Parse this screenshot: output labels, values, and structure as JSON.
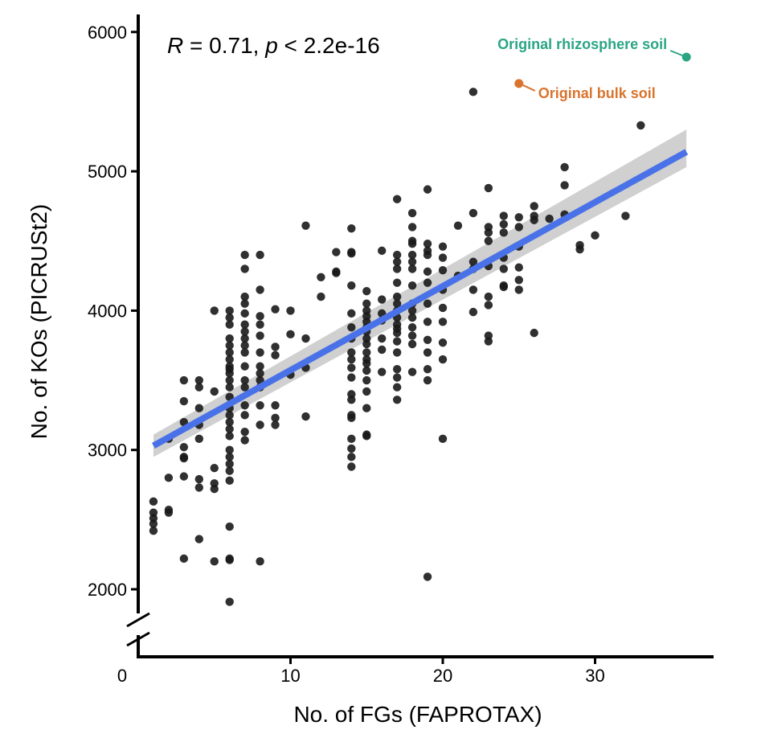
{
  "chart_data": {
    "type": "scatter",
    "title": "",
    "xlabel": "No. of FGs (FAPROTAX)",
    "ylabel": "No. of KOs (PICRUSt2)",
    "stats_text": {
      "r_label": "R",
      "r_rest": " = 0.71, ",
      "p_label": "p",
      "p_rest": " < 2.2e-16"
    },
    "xlim": [
      0,
      38
    ],
    "ylim": [
      1800,
      6100
    ],
    "x_ticks": [
      0,
      10,
      20,
      30
    ],
    "y_ticks": [
      2000,
      3000,
      4000,
      5000,
      6000
    ],
    "x_tick_labels": [
      "0",
      "10",
      "20",
      "30"
    ],
    "y_tick_labels": [
      "2000",
      "3000",
      "4000",
      "5000",
      "6000"
    ],
    "y_axis_break": true,
    "grid": false,
    "colors": {
      "points": "#1a1a1a",
      "fit_line": "#4a72e8",
      "confidence_band": "#c8c8c8",
      "rhizosphere": "#2aa583",
      "bulk": "#d9742d"
    },
    "fit": {
      "x": [
        1,
        36
      ],
      "y": [
        3030,
        5140
      ],
      "ci_low": [
        2950,
        5030
      ],
      "ci_high": [
        3110,
        5300
      ]
    },
    "annotations": [
      {
        "label": "Original rhizosphere soil",
        "x": 36,
        "y": 5820,
        "color": "#2aa583",
        "side": "left"
      },
      {
        "label": "Original bulk soil",
        "x": 25,
        "y": 5630,
        "color": "#d9742d",
        "side": "right"
      }
    ],
    "points": [
      [
        1,
        2630
      ],
      [
        1,
        2550
      ],
      [
        1,
        2510
      ],
      [
        1,
        2470
      ],
      [
        1,
        2420
      ],
      [
        2,
        3080
      ],
      [
        2,
        2800
      ],
      [
        2,
        2570
      ],
      [
        2,
        2550
      ],
      [
        3,
        3500
      ],
      [
        3,
        3350
      ],
      [
        3,
        3200
      ],
      [
        3,
        3020
      ],
      [
        3,
        2950
      ],
      [
        3,
        2940
      ],
      [
        3,
        2810
      ],
      [
        3,
        2220
      ],
      [
        4,
        3500
      ],
      [
        4,
        3450
      ],
      [
        4,
        3300
      ],
      [
        4,
        3180
      ],
      [
        4,
        3080
      ],
      [
        4,
        2790
      ],
      [
        4,
        2730
      ],
      [
        4,
        2360
      ],
      [
        5,
        4000
      ],
      [
        5,
        3420
      ],
      [
        5,
        2870
      ],
      [
        5,
        2760
      ],
      [
        5,
        2720
      ],
      [
        5,
        2200
      ],
      [
        6,
        4000
      ],
      [
        6,
        3950
      ],
      [
        6,
        3900
      ],
      [
        6,
        3800
      ],
      [
        6,
        3750
      ],
      [
        6,
        3700
      ],
      [
        6,
        3650
      ],
      [
        6,
        3600
      ],
      [
        6,
        3580
      ],
      [
        6,
        3550
      ],
      [
        6,
        3500
      ],
      [
        6,
        3450
      ],
      [
        6,
        3380
      ],
      [
        6,
        3300
      ],
      [
        6,
        3250
      ],
      [
        6,
        3200
      ],
      [
        6,
        3150
      ],
      [
        6,
        3100
      ],
      [
        6,
        3000
      ],
      [
        6,
        2950
      ],
      [
        6,
        2900
      ],
      [
        6,
        2850
      ],
      [
        6,
        2780
      ],
      [
        6,
        2450
      ],
      [
        6,
        2220
      ],
      [
        6,
        2210
      ],
      [
        6,
        1910
      ],
      [
        7,
        4400
      ],
      [
        7,
        4300
      ],
      [
        7,
        4100
      ],
      [
        7,
        4050
      ],
      [
        7,
        3980
      ],
      [
        7,
        3900
      ],
      [
        7,
        3850
      ],
      [
        7,
        3800
      ],
      [
        7,
        3750
      ],
      [
        7,
        3700
      ],
      [
        7,
        3600
      ],
      [
        7,
        3500
      ],
      [
        7,
        3450
      ],
      [
        7,
        3320
      ],
      [
        7,
        3250
      ],
      [
        7,
        3130
      ],
      [
        7,
        3070
      ],
      [
        8,
        4400
      ],
      [
        8,
        4150
      ],
      [
        8,
        3960
      ],
      [
        8,
        3900
      ],
      [
        8,
        3820
      ],
      [
        8,
        3700
      ],
      [
        8,
        3600
      ],
      [
        8,
        3550
      ],
      [
        8,
        3500
      ],
      [
        8,
        3450
      ],
      [
        8,
        3320
      ],
      [
        8,
        3180
      ],
      [
        8,
        2200
      ],
      [
        9,
        4010
      ],
      [
        9,
        3740
      ],
      [
        9,
        3680
      ],
      [
        9,
        3320
      ],
      [
        9,
        3230
      ],
      [
        9,
        3180
      ],
      [
        10,
        4000
      ],
      [
        10,
        3830
      ],
      [
        10,
        3540
      ],
      [
        11,
        4610
      ],
      [
        11,
        3800
      ],
      [
        11,
        3590
      ],
      [
        11,
        3240
      ],
      [
        12,
        4240
      ],
      [
        12,
        4100
      ],
      [
        13,
        4420
      ],
      [
        13,
        4280
      ],
      [
        13,
        4270
      ],
      [
        14,
        4590
      ],
      [
        14,
        4420
      ],
      [
        14,
        4410
      ],
      [
        14,
        4180
      ],
      [
        14,
        3980
      ],
      [
        14,
        3880
      ],
      [
        14,
        3800
      ],
      [
        14,
        3700
      ],
      [
        14,
        3650
      ],
      [
        14,
        3590
      ],
      [
        14,
        3520
      ],
      [
        14,
        3400
      ],
      [
        14,
        3360
      ],
      [
        14,
        3250
      ],
      [
        14,
        3230
      ],
      [
        14,
        3080
      ],
      [
        14,
        3010
      ],
      [
        14,
        2950
      ],
      [
        14,
        2880
      ],
      [
        15,
        4140
      ],
      [
        15,
        4050
      ],
      [
        15,
        4000
      ],
      [
        15,
        3960
      ],
      [
        15,
        3920
      ],
      [
        15,
        3880
      ],
      [
        15,
        3850
      ],
      [
        15,
        3800
      ],
      [
        15,
        3760
      ],
      [
        15,
        3700
      ],
      [
        15,
        3650
      ],
      [
        15,
        3620
      ],
      [
        15,
        3570
      ],
      [
        15,
        3500
      ],
      [
        15,
        3420
      ],
      [
        15,
        3300
      ],
      [
        15,
        3110
      ],
      [
        15,
        3100
      ],
      [
        16,
        4430
      ],
      [
        16,
        4080
      ],
      [
        16,
        3980
      ],
      [
        16,
        3930
      ],
      [
        16,
        3800
      ],
      [
        16,
        3720
      ],
      [
        16,
        3560
      ],
      [
        17,
        4800
      ],
      [
        17,
        4400
      ],
      [
        17,
        4350
      ],
      [
        17,
        4300
      ],
      [
        17,
        4200
      ],
      [
        17,
        4100
      ],
      [
        17,
        4050
      ],
      [
        17,
        4000
      ],
      [
        17,
        3950
      ],
      [
        17,
        3900
      ],
      [
        17,
        3870
      ],
      [
        17,
        3840
      ],
      [
        17,
        3780
      ],
      [
        17,
        3700
      ],
      [
        17,
        3580
      ],
      [
        17,
        3520
      ],
      [
        17,
        3450
      ],
      [
        17,
        3360
      ],
      [
        18,
        4700
      ],
      [
        18,
        4600
      ],
      [
        18,
        4500
      ],
      [
        18,
        4480
      ],
      [
        18,
        4400
      ],
      [
        18,
        4350
      ],
      [
        18,
        4300
      ],
      [
        18,
        4180
      ],
      [
        18,
        4050
      ],
      [
        18,
        4000
      ],
      [
        18,
        3950
      ],
      [
        18,
        3880
      ],
      [
        18,
        3820
      ],
      [
        18,
        3760
      ],
      [
        18,
        3560
      ],
      [
        19,
        4870
      ],
      [
        19,
        4480
      ],
      [
        19,
        4430
      ],
      [
        19,
        4400
      ],
      [
        19,
        4280
      ],
      [
        19,
        4200
      ],
      [
        19,
        4050
      ],
      [
        19,
        3920
      ],
      [
        19,
        3790
      ],
      [
        19,
        3700
      ],
      [
        19,
        3580
      ],
      [
        19,
        3500
      ],
      [
        19,
        2090
      ],
      [
        20,
        4460
      ],
      [
        20,
        4380
      ],
      [
        20,
        4290
      ],
      [
        20,
        4150
      ],
      [
        20,
        4020
      ],
      [
        20,
        3920
      ],
      [
        20,
        3770
      ],
      [
        20,
        3650
      ],
      [
        20,
        3080
      ],
      [
        21,
        4610
      ],
      [
        21,
        4250
      ],
      [
        22,
        5570
      ],
      [
        22,
        4700
      ],
      [
        22,
        4350
      ],
      [
        22,
        4300
      ],
      [
        22,
        4150
      ],
      [
        22,
        3990
      ],
      [
        23,
        4880
      ],
      [
        23,
        4600
      ],
      [
        23,
        4560
      ],
      [
        23,
        4500
      ],
      [
        23,
        4320
      ],
      [
        23,
        4100
      ],
      [
        23,
        4040
      ],
      [
        23,
        3820
      ],
      [
        23,
        3780
      ],
      [
        24,
        4680
      ],
      [
        24,
        4620
      ],
      [
        24,
        4560
      ],
      [
        24,
        4380
      ],
      [
        24,
        4300
      ],
      [
        24,
        4180
      ],
      [
        24,
        4170
      ],
      [
        25,
        4670
      ],
      [
        25,
        4600
      ],
      [
        25,
        4460
      ],
      [
        25,
        4310
      ],
      [
        25,
        4220
      ],
      [
        25,
        4150
      ],
      [
        26,
        4750
      ],
      [
        26,
        4680
      ],
      [
        26,
        4650
      ],
      [
        26,
        3840
      ],
      [
        27,
        4660
      ],
      [
        28,
        5030
      ],
      [
        28,
        4900
      ],
      [
        28,
        4690
      ],
      [
        29,
        4470
      ],
      [
        29,
        4440
      ],
      [
        30,
        4540
      ],
      [
        32,
        4680
      ],
      [
        33,
        5330
      ]
    ]
  }
}
